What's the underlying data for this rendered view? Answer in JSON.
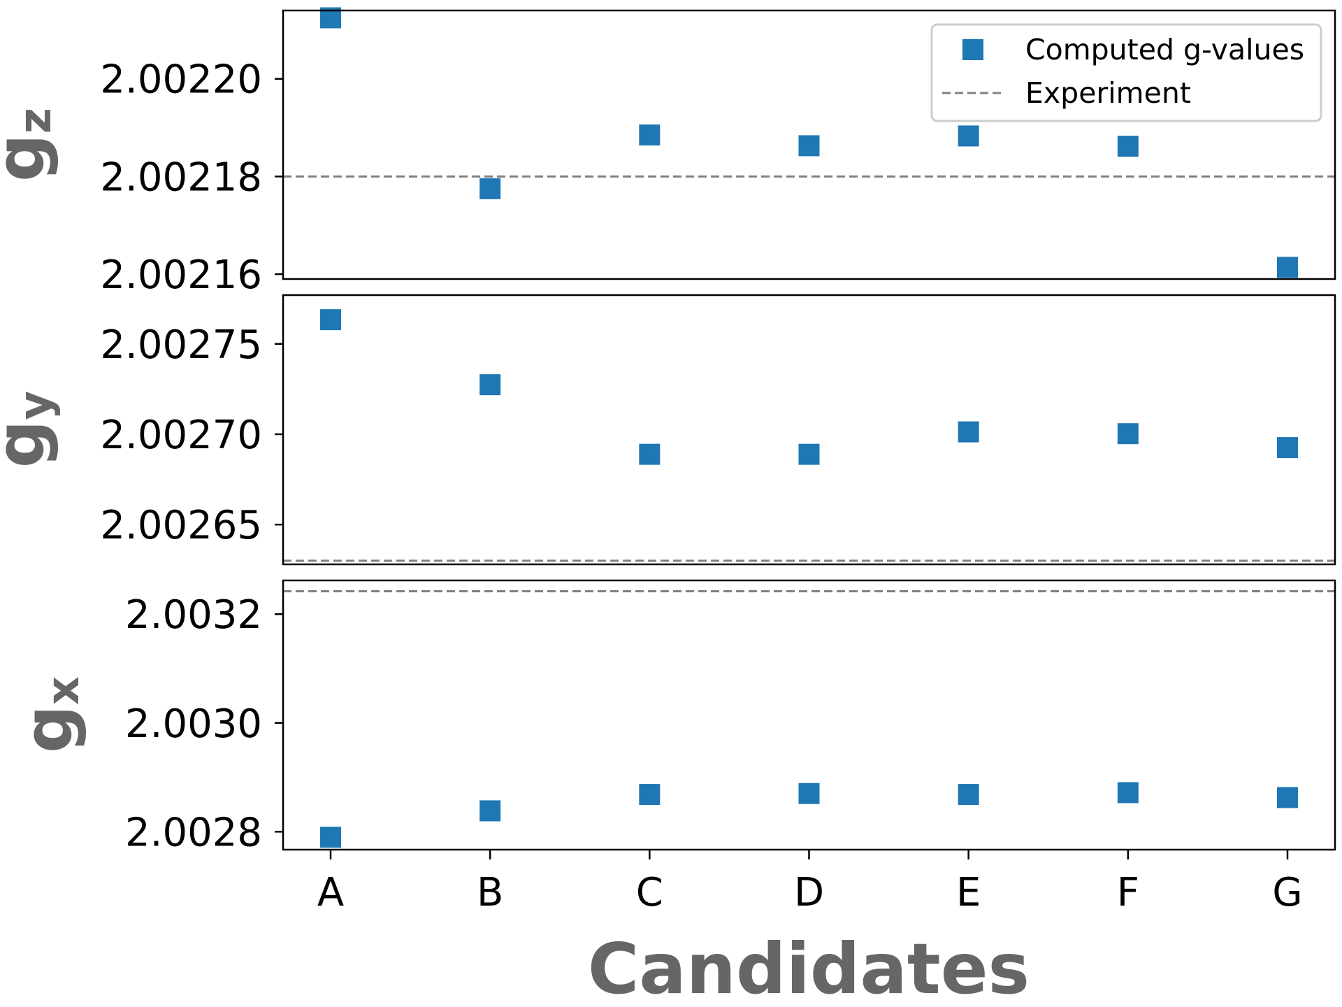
{
  "chart_data": {
    "type": "scatter",
    "xlabel": "Candidates",
    "categories": [
      "A",
      "B",
      "C",
      "D",
      "E",
      "F",
      "G"
    ],
    "legend": {
      "placement": "top-right",
      "entries": [
        {
          "label": "Computed g-values",
          "marker": "square",
          "color": "#1f77b4"
        },
        {
          "label": "Experiment",
          "marker": "dashed-line",
          "color": "#808080"
        }
      ]
    },
    "marker_color": "#1f77b4",
    "experiment_color": "#808080",
    "panels": [
      {
        "ylabel": "g",
        "ylabel_sub": "z",
        "ylim": [
          2.002159,
          2.002214
        ],
        "yticks": [
          2.00216,
          2.00218,
          2.0022
        ],
        "ytick_labels": [
          "2.00216",
          "2.00218",
          "2.00220"
        ],
        "values": [
          2.0022125,
          2.0021775,
          2.0021885,
          2.0021863,
          2.0021883,
          2.0021862,
          2.0021614
        ],
        "experiment": 2.00218
      },
      {
        "ylabel": "g",
        "ylabel_sub": "y",
        "ylim": [
          2.002628,
          2.002777
        ],
        "yticks": [
          2.00265,
          2.0027,
          2.00275
        ],
        "ytick_labels": [
          "2.00265",
          "2.00270",
          "2.00275"
        ],
        "values": [
          2.0027634,
          2.0027274,
          2.0026889,
          2.0026889,
          2.0027013,
          2.0027003,
          2.0026926
        ],
        "experiment": 2.00263
      },
      {
        "ylabel": "g",
        "ylabel_sub": "x",
        "ylim": [
          2.002767,
          2.003262
        ],
        "yticks": [
          2.0028,
          2.003,
          2.0032
        ],
        "ytick_labels": [
          "2.0028",
          "2.0030",
          "2.0032"
        ],
        "values": [
          2.0027898,
          2.0028384,
          2.0028685,
          2.0028702,
          2.0028685,
          2.0028718,
          2.0028628
        ],
        "experiment": 2.003242
      }
    ]
  }
}
